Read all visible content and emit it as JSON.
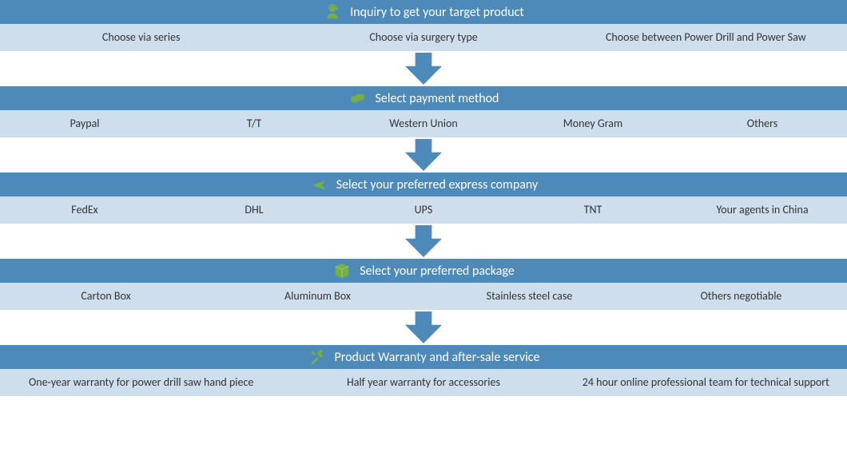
{
  "theme": {
    "header_bg": "#4d89b9",
    "options_bg": "#cfdeed",
    "icon_color": "#76b043",
    "arrow_fill": "#4d89b9",
    "text_color": "#ffffff",
    "option_text_color": "#333333",
    "header_fontsize": 16,
    "option_fontsize": 14
  },
  "arrow": {
    "width": 46,
    "height": 40
  },
  "steps": [
    {
      "icon": "headset",
      "title": "Inquiry to get your target product",
      "options": [
        "Choose via series",
        "Choose via surgery type",
        "Choose between Power Drill and Power Saw"
      ]
    },
    {
      "icon": "coins",
      "title": "Select payment method",
      "options": [
        "Paypal",
        "T/T",
        "Western Union",
        "Money Gram",
        "Others"
      ]
    },
    {
      "icon": "plane",
      "title": "Select your preferred express company",
      "options": [
        "FedEx",
        "DHL",
        "UPS",
        "TNT",
        "Your agents in China"
      ]
    },
    {
      "icon": "package",
      "title": "Select your preferred package",
      "options": [
        "Carton Box",
        "Aluminum Box",
        "Stainless steel case",
        "Others negotiable"
      ]
    },
    {
      "icon": "tools",
      "title": "Product Warranty and after-sale service",
      "options": [
        "One-year warranty for power drill saw hand piece",
        "Half year warranty for accessories",
        "24 hour online professional team for technical support"
      ]
    }
  ]
}
